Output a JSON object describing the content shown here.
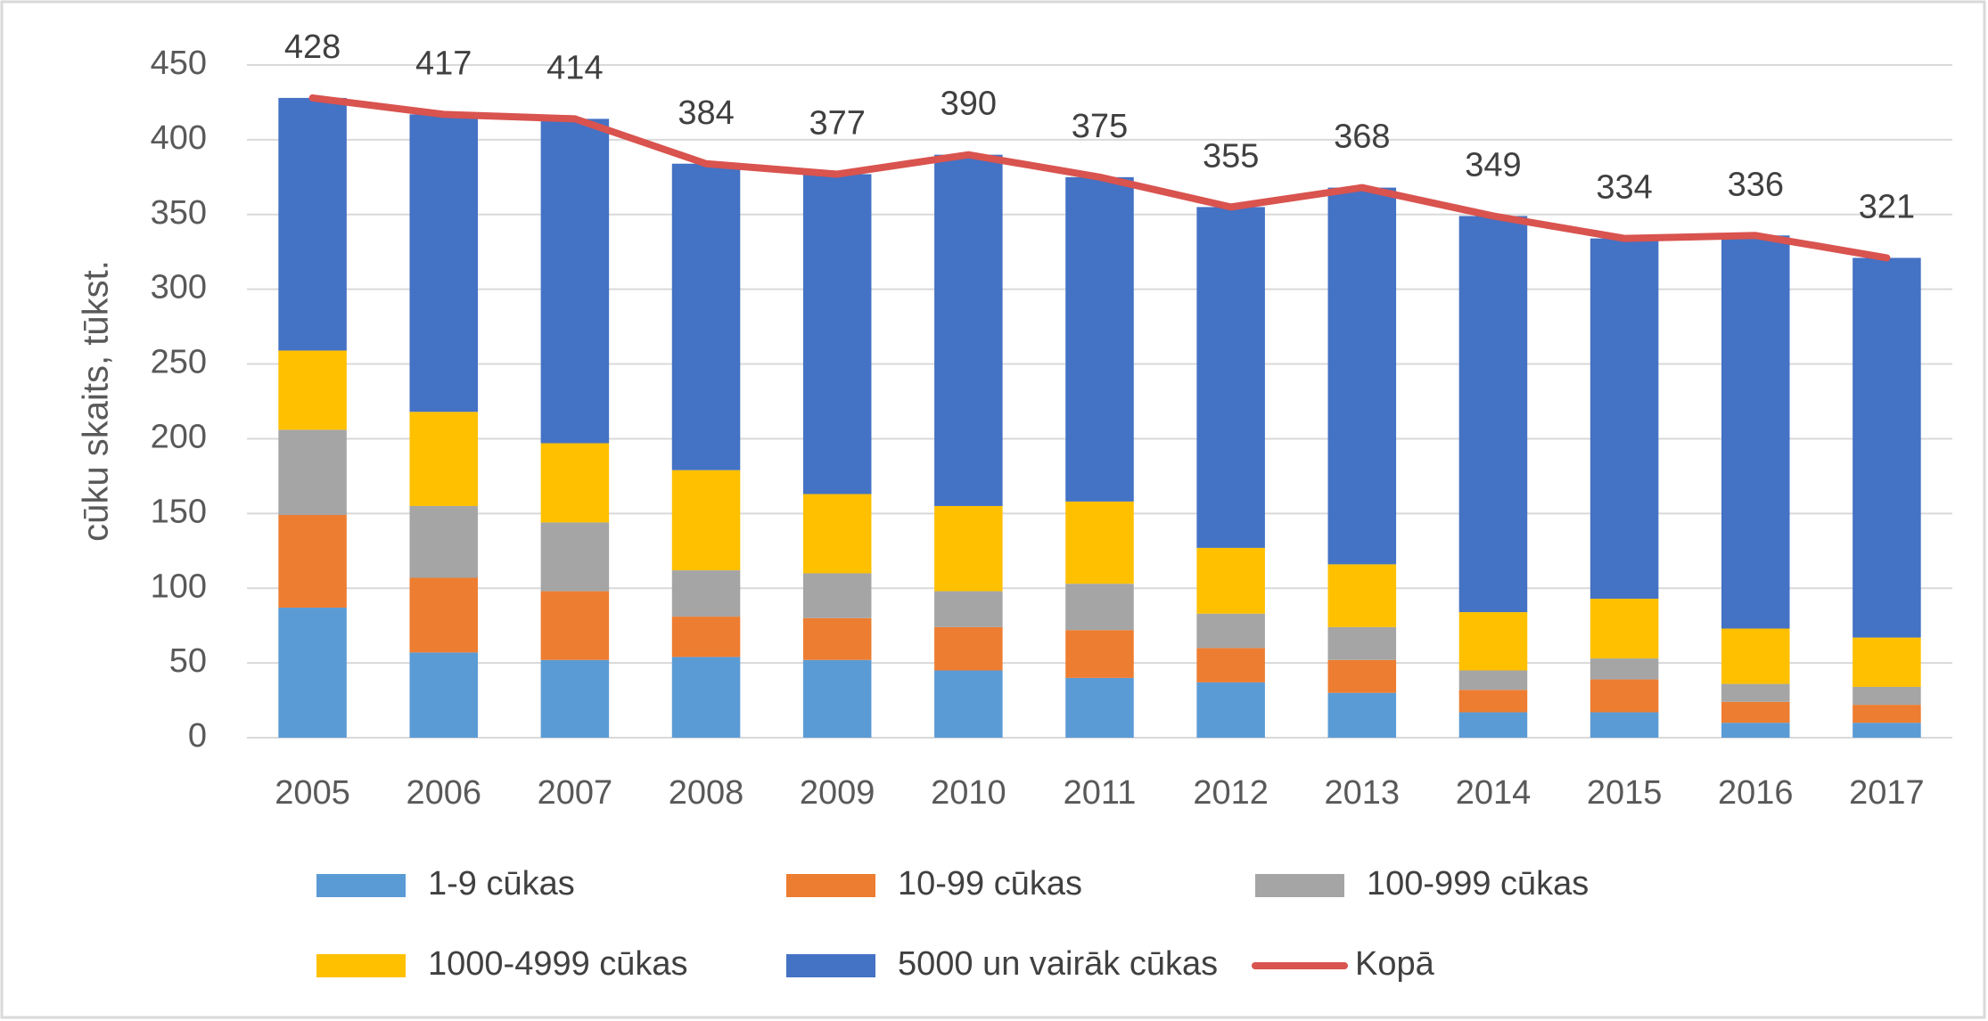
{
  "chart_data": {
    "type": "bar",
    "stacked": true,
    "y_label": "cūku skaits, tūkst.",
    "categories": [
      "2005",
      "2006",
      "2007",
      "2008",
      "2009",
      "2010",
      "2011",
      "2012",
      "2013",
      "2014",
      "2015",
      "2016",
      "2017"
    ],
    "series": [
      {
        "name": "1-9 cūkas",
        "color": "#5b9bd5",
        "values": [
          87,
          57,
          52,
          54,
          52,
          45,
          40,
          37,
          30,
          17,
          17,
          10,
          10
        ]
      },
      {
        "name": "10-99 cūkas",
        "color": "#ed7d31",
        "values": [
          62,
          50,
          46,
          27,
          28,
          29,
          32,
          23,
          22,
          15,
          22,
          14,
          12
        ]
      },
      {
        "name": "100-999 cūkas",
        "color": "#a5a5a5",
        "values": [
          57,
          48,
          46,
          31,
          30,
          24,
          31,
          23,
          22,
          13,
          14,
          12,
          12
        ]
      },
      {
        "name": "1000-4999 cūkas",
        "color": "#ffc000",
        "values": [
          53,
          63,
          53,
          67,
          53,
          57,
          55,
          44,
          42,
          39,
          40,
          37,
          33
        ]
      },
      {
        "name": "5000 un vairāk cūkas",
        "color": "#4472c4",
        "values": [
          169,
          199,
          217,
          205,
          214,
          235,
          217,
          228,
          252,
          265,
          241,
          263,
          254
        ]
      },
      {
        "name": "Kopā",
        "color": "#d9534f",
        "type": "line",
        "values": [
          428,
          417,
          414,
          384,
          377,
          390,
          375,
          355,
          368,
          349,
          334,
          336,
          321
        ]
      }
    ],
    "ylim": [
      0,
      450
    ],
    "yticks": [
      0,
      50,
      100,
      150,
      200,
      250,
      300,
      350,
      400,
      450
    ],
    "grid": true
  }
}
